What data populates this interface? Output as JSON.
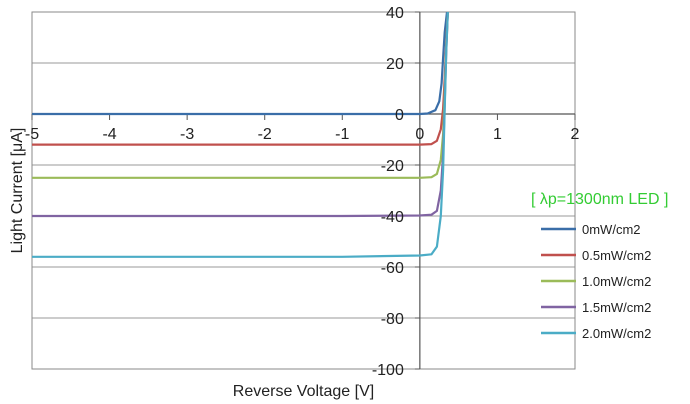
{
  "chart_data": {
    "type": "line",
    "title": "",
    "xlabel": "Reverse Voltage [V]",
    "ylabel": "Light Current [μA]",
    "xlim": [
      -5,
      2
    ],
    "ylim": [
      -100,
      40
    ],
    "x_ticks": [
      -5,
      -4,
      -3,
      -2,
      -1,
      0,
      1,
      2
    ],
    "y_ticks": [
      -100,
      -80,
      -60,
      -40,
      -20,
      0,
      20,
      40
    ],
    "grid": "horizontal",
    "legend_title": "[ λp=1300nm LED ]",
    "legend_position": "right",
    "series": [
      {
        "name": "0mW/cm2",
        "color": "#3a6ea8",
        "x": [
          -5,
          -1,
          0,
          0.1,
          0.2,
          0.25,
          0.28,
          0.3,
          0.32,
          0.35
        ],
        "y": [
          0,
          0,
          0,
          0.2,
          1.5,
          5,
          12,
          22,
          32,
          40
        ]
      },
      {
        "name": "0.5mW/cm2",
        "color": "#c0504d",
        "x": [
          -5,
          -1,
          0,
          0.15,
          0.22,
          0.27,
          0.3,
          0.32,
          0.34,
          0.36
        ],
        "y": [
          -12,
          -12,
          -12,
          -11.8,
          -10.5,
          -6,
          2,
          14,
          28,
          40
        ]
      },
      {
        "name": "1.0mW/cm2",
        "color": "#9bbb59",
        "x": [
          -5,
          -1,
          0,
          0.15,
          0.22,
          0.27,
          0.3,
          0.32,
          0.34,
          0.36
        ],
        "y": [
          -25,
          -25,
          -25,
          -24.8,
          -23.5,
          -18,
          -8,
          8,
          26,
          40
        ]
      },
      {
        "name": "1.5mW/cm2",
        "color": "#8064a2",
        "x": [
          -5,
          -1,
          0,
          0.15,
          0.22,
          0.27,
          0.3,
          0.32,
          0.34,
          0.36
        ],
        "y": [
          -40,
          -40,
          -39.8,
          -39.5,
          -38,
          -30,
          -16,
          4,
          24,
          40
        ]
      },
      {
        "name": "2.0mW/cm2",
        "color": "#4bacc6",
        "x": [
          -5,
          -1,
          0,
          0.15,
          0.22,
          0.27,
          0.3,
          0.32,
          0.34,
          0.36
        ],
        "y": [
          -56,
          -56,
          -55.5,
          -55,
          -52,
          -40,
          -22,
          2,
          24,
          40
        ]
      }
    ]
  }
}
